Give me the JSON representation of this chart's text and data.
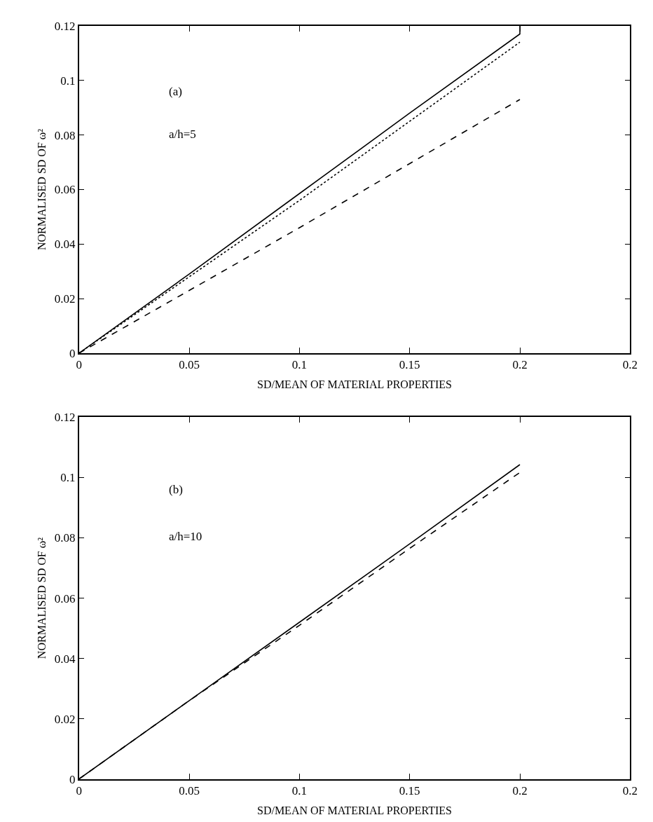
{
  "chart_data": [
    {
      "type": "line",
      "xlabel": "SD/MEAN OF MATERIAL PROPERTIES",
      "ylabel": "NORMALISED SD OF ω²",
      "annotations": [
        "(a)",
        "a/h=5"
      ],
      "xlim": [
        0,
        0.25
      ],
      "xticks": [
        0,
        0.05,
        0.1,
        0.15,
        0.2,
        {
          "value": 0.25,
          "label": "0.2"
        }
      ],
      "ylim": [
        0,
        0.12
      ],
      "yticks": [
        0,
        0.02,
        0.04,
        0.06,
        0.08,
        0.1,
        0.12
      ],
      "series": [
        {
          "color": "#000000",
          "line_style": "solid",
          "x": [
            0,
            0.05,
            0.1,
            0.15,
            0.2,
            0.2
          ],
          "values": [
            0,
            0.029,
            0.0585,
            0.088,
            0.117,
            0.12
          ]
        },
        {
          "color": "#000000",
          "line_style": "dotted",
          "x": [
            0,
            0.05,
            0.1,
            0.15,
            0.2
          ],
          "values": [
            0,
            0.028,
            0.056,
            0.085,
            0.114
          ]
        },
        {
          "color": "#000000",
          "line_style": "dashed",
          "x": [
            0,
            0.05,
            0.1,
            0.15,
            0.2
          ],
          "values": [
            0,
            0.023,
            0.046,
            0.0695,
            0.093
          ]
        }
      ]
    },
    {
      "type": "line",
      "xlabel": "SD/MEAN OF MATERIAL PROPERTIES",
      "ylabel": "NORMALISED SD OF ω²",
      "annotations": [
        "(b)",
        "a/h=10"
      ],
      "xlim": [
        0,
        0.25
      ],
      "xticks": [
        0,
        0.05,
        0.1,
        0.15,
        0.2,
        {
          "value": 0.25,
          "label": "0.2"
        }
      ],
      "ylim": [
        0,
        0.12
      ],
      "yticks": [
        0,
        0.02,
        0.04,
        0.06,
        0.08,
        0.1,
        0.12
      ],
      "series": [
        {
          "color": "#000000",
          "line_style": "solid",
          "x": [
            0,
            0.05,
            0.1,
            0.15,
            0.2
          ],
          "values": [
            0,
            0.026,
            0.052,
            0.078,
            0.1043
          ]
        },
        {
          "color": "#000000",
          "line_style": "dashed",
          "x": [
            0,
            0.05,
            0.1,
            0.15,
            0.2
          ],
          "values": [
            0,
            0.026,
            0.051,
            0.0765,
            0.1017
          ]
        }
      ]
    }
  ]
}
